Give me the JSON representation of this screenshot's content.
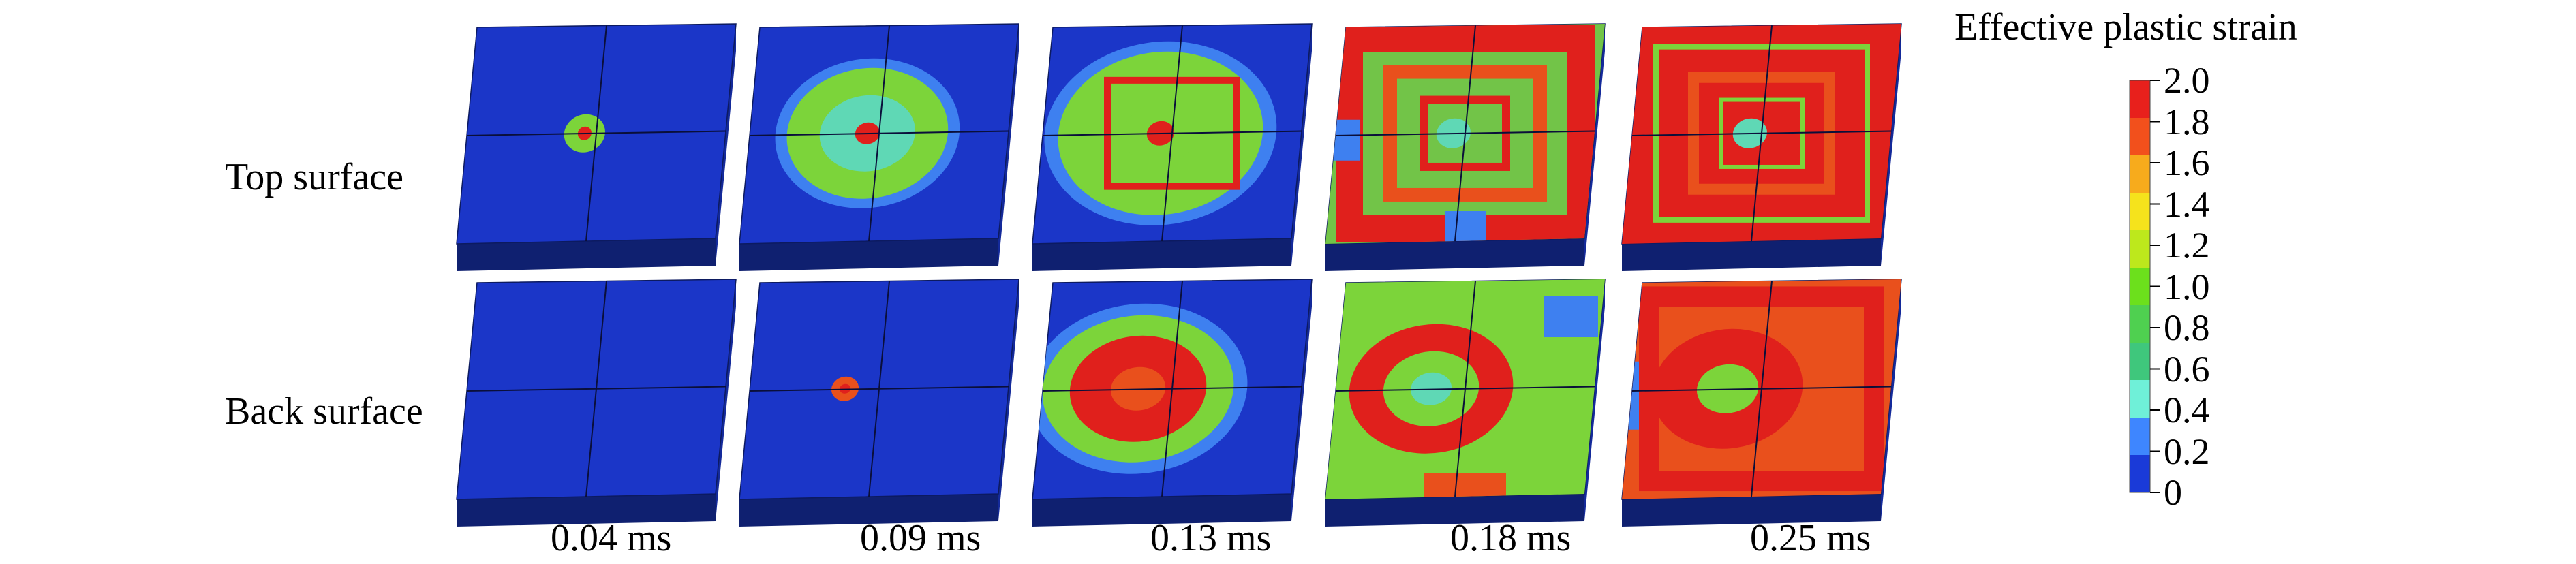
{
  "row_labels": [
    "Top surface",
    "Back surface"
  ],
  "time_labels": [
    "0.04 ms",
    "0.09 ms",
    "0.13 ms",
    "0.18 ms",
    "0.25 ms"
  ],
  "legend": {
    "title": "Effective plastic strain",
    "tick_labels": [
      "2.0",
      "1.8",
      "1.6",
      "1.4",
      "1.2",
      "1.0",
      "0.8",
      "0.6",
      "0.4",
      "0.2",
      "0"
    ],
    "colors": [
      "#e8201c",
      "#f2501c",
      "#f7ab1c",
      "#f5e31c",
      "#bde81c",
      "#6ce01c",
      "#4fd050",
      "#3fc77c",
      "#6ff0d8",
      "#3e86ff",
      "#1a3ad8"
    ]
  },
  "palette": {
    "plate_top": "#1b36c8",
    "plate_right": "#142a9a",
    "plate_front": "#0f2070",
    "red": "#e0201c",
    "orange": "#e9501c",
    "green": "#7cd43a",
    "cyan": "#5fd8b5",
    "light_blue": "#3e80f0"
  }
}
